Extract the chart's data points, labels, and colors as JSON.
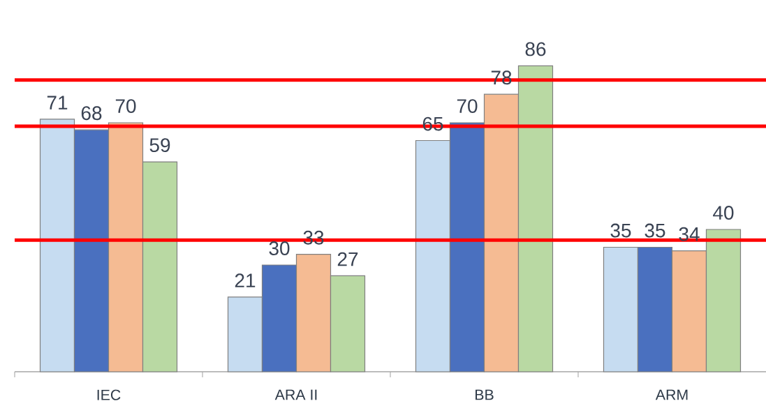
{
  "chart_data": {
    "type": "bar",
    "categories": [
      "IEC",
      "ARA II",
      "BB",
      "ARM"
    ],
    "series": [
      {
        "color": "#c6dcf1",
        "values": [
          71,
          21,
          65,
          35
        ]
      },
      {
        "color": "#4a70bf",
        "values": [
          68,
          30,
          70,
          35
        ]
      },
      {
        "color": "#f5bb93",
        "values": [
          70,
          33,
          78,
          34
        ]
      },
      {
        "color": "#b9d9a3",
        "values": [
          59,
          27,
          86,
          40
        ]
      }
    ],
    "data_labels": true,
    "tick_labels": "x",
    "ref_lines": [
      {
        "axis": "y",
        "value": 82,
        "color": "#ff0000"
      },
      {
        "axis": "y",
        "value": 69,
        "color": "#ff0000"
      },
      {
        "axis": "y",
        "value": 37,
        "color": "#ff0000"
      }
    ]
  }
}
